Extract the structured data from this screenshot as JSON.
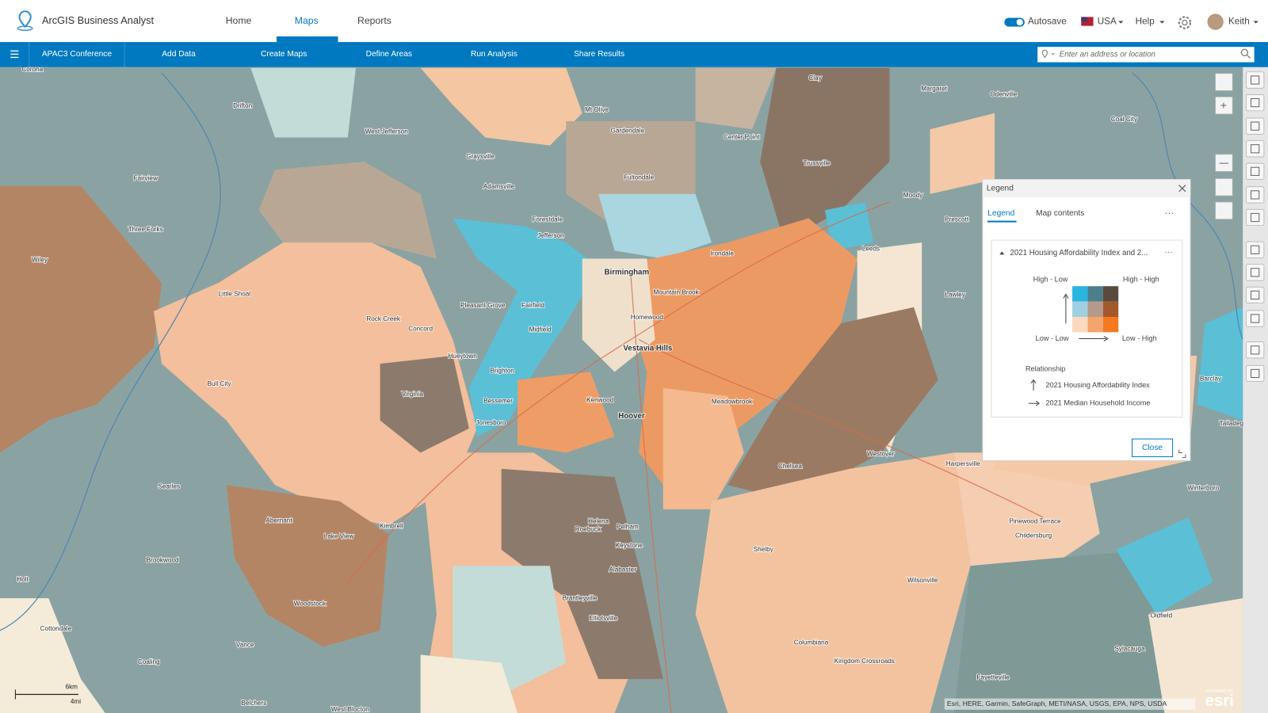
{
  "header": {
    "app_title": "ArcGIS Business Analyst",
    "nav": [
      "Home",
      "Maps",
      "Reports"
    ],
    "autosave": "Autosave",
    "country": "USA",
    "help": "Help",
    "user": "Keith"
  },
  "toolbar": {
    "project": "APAC3 Conference",
    "steps": [
      "Add Data",
      "Create Maps",
      "Define Areas",
      "Run Analysis",
      "Share Results"
    ],
    "search_placeholder": "Enter an address or location"
  },
  "legend": {
    "title": "Legend",
    "tabs": [
      "Legend",
      "Map contents"
    ],
    "layer": "2021 Housing Affordability Index and 2...",
    "corners": [
      "High - Low",
      "High - High",
      "Low - Low",
      "Low - High"
    ],
    "swatch_colors": [
      "#29b5e0",
      "#4c7f8c",
      "#5a4a3e",
      "#9fd0e0",
      "#b39a8a",
      "#a3592c",
      "#fbd9c0",
      "#f5a46d",
      "#f47920"
    ],
    "relationship": "Relationship",
    "y_variable": "2021 Housing Affordability Index",
    "x_variable": "2021 Median Household Income",
    "close": "Close"
  },
  "map": {
    "labels": [
      "Corona",
      "Drifton",
      "Mt Olive",
      "Clay",
      "Margaret",
      "Odenville",
      "West Jefferson",
      "Gardendale",
      "Center Point",
      "Coal City",
      "Graysville",
      "Trussville",
      "Fairview",
      "Fultondale",
      "Adamsville",
      "Moody",
      "Forestdale",
      "Prescott",
      "Three Forks",
      "Jefferson",
      "Wiley",
      "Leeds",
      "Birmingham",
      "Irondale",
      "Little Shoal",
      "Mountain Brook",
      "Lawley",
      "Pleasant Grove",
      "Fairfield",
      "Rock Creek",
      "Homewood",
      "Concord",
      "Midfield",
      "Vestavia Hills",
      "Hueytown",
      "Brighton",
      "Bull City",
      "Virginia",
      "Bessemer",
      "Kenwood",
      "Meadowbrook",
      "Barclay",
      "Hoover",
      "Jonesboro",
      "Talladega",
      "Westover",
      "Harpersville",
      "Chelsea",
      "Searles",
      "Winterboro",
      "Abernant",
      "Kimbrell",
      "Lake View",
      "Helena",
      "Roebuck",
      "Pelham",
      "Pinewood Terrace",
      "Childersburg",
      "Shelby",
      "Brookwood",
      "Keystone",
      "Holt",
      "Alabaster",
      "Wilsonville",
      "Brantleyville",
      "Woodstock",
      "Oldfield",
      "Elliotsville",
      "Cottondale",
      "Vance",
      "Columbiana",
      "Sylacauga",
      "Kingdom Crossroads",
      "Coaling",
      "Fayetteville",
      "Belchers",
      "West Blocton"
    ],
    "scale_km": "6km",
    "scale_mi": "4mi",
    "attribution": "Esri, HERE, Garmin, SafeGraph, METI/NASA, USGS, EPA, NPS, USDA",
    "powered_by": "POWERED BY",
    "esri": "esri"
  }
}
